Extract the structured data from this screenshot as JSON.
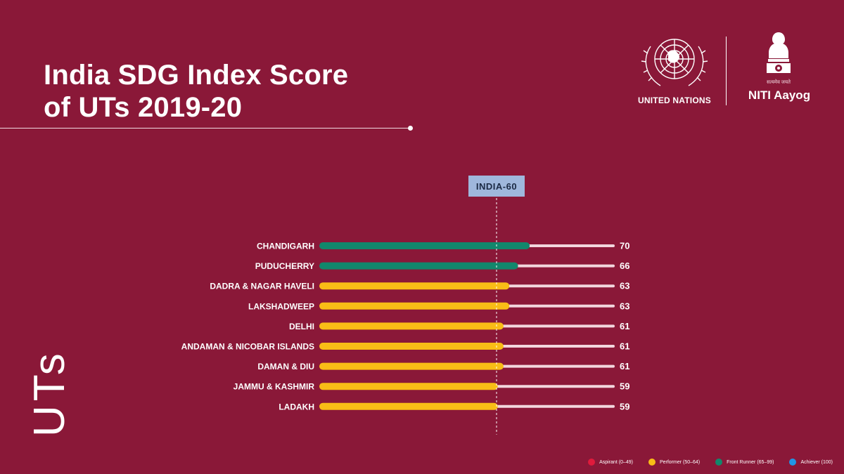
{
  "header": {
    "title_line1": "India SDG Index Score",
    "title_line2": "of UTs 2019-20"
  },
  "logos": {
    "un_name": "UNITED NATIONS",
    "niti_motto": "सत्यमेव जयते",
    "niti_name": "NITI Aayog"
  },
  "axis_label": "UTs",
  "chart_data": {
    "type": "bar",
    "orientation": "horizontal",
    "categories": [
      "CHANDIGARH",
      "PUDUCHERRY",
      "DADRA & NAGAR HAVELI",
      "LAKSHADWEEP",
      "DELHI",
      "ANDAMAN & NICOBAR ISLANDS",
      "DAMAN & DIU",
      "JAMMU & KASHMIR",
      "LADAKH"
    ],
    "values": [
      70,
      66,
      63,
      63,
      61,
      61,
      61,
      59,
      59
    ],
    "value_labels": [
      "70",
      "66",
      "63",
      "63",
      "61",
      "61",
      "61",
      "59",
      "59"
    ],
    "categories_bands": [
      "front-runner",
      "front-runner",
      "performer",
      "performer",
      "performer",
      "performer",
      "performer",
      "performer",
      "performer"
    ],
    "xlim": [
      0,
      100
    ],
    "reference_line": {
      "label": "INDIA-60",
      "value": 60
    },
    "colors": {
      "front-runner": "#12876c",
      "performer": "#f9bd16",
      "track": "#f2d6dd",
      "reference_box": "#9fb7dc",
      "reference_text": "#1b2a44"
    },
    "legend": [
      {
        "label": "Aspirant (0–49)",
        "color": "#e01a3c"
      },
      {
        "label": "Performer (50–64)",
        "color": "#f9bd16"
      },
      {
        "label": "Front Runner (65–99)",
        "color": "#12876c"
      },
      {
        "label": "Achiever (100)",
        "color": "#2196e6"
      }
    ]
  }
}
